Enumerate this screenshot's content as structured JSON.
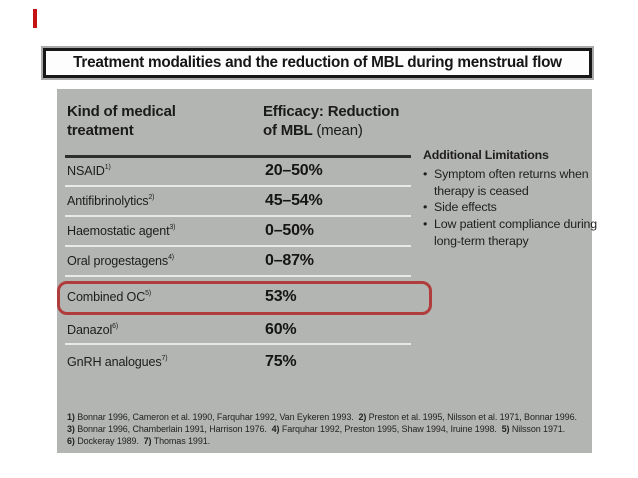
{
  "slide": {
    "title": "Treatment modalities and the reduction of MBL during menstrual flow"
  },
  "table": {
    "header": {
      "col1_line1": "Kind of medical",
      "col1_line2": "treatment",
      "col2_line1": "Efficacy: Reduction",
      "col2_line2_bold": "of MBL",
      "col2_line2_normal": "(mean)"
    },
    "rows": [
      {
        "label": "NSAID",
        "sup": "1)",
        "value": "20–50%",
        "highlighted": false
      },
      {
        "label": "Antifibrinolytics",
        "sup": "2)",
        "value": "45–54%",
        "highlighted": false
      },
      {
        "label": "Haemostatic agent",
        "sup": "3)",
        "value": "0–50%",
        "highlighted": false
      },
      {
        "label": "Oral progestagens",
        "sup": "4)",
        "value": "0–87%",
        "highlighted": false
      },
      {
        "label": "Combined OC",
        "sup": "5)",
        "value": "53%",
        "highlighted": true
      },
      {
        "label": "Danazol",
        "sup": "6)",
        "value": "60%",
        "highlighted": false
      },
      {
        "label": "GnRH analogues",
        "sup": "7)",
        "value": "75%",
        "highlighted": false
      }
    ]
  },
  "limitations": {
    "title": "Additional Limitations",
    "bullets": [
      "Symptom often returns when therapy is ceased",
      "Side effects",
      "Low patient compliance during long-term therapy"
    ]
  },
  "references": {
    "lines": [
      [
        {
          "b": "1)"
        },
        {
          "t": " Bonnar 1996, Cameron et al. 1990, Farquhar 1992, Van Eykeren 1993.  "
        },
        {
          "b": "2)"
        },
        {
          "t": " Preston et al. 1995, Nilsson et al. 1971, Bonnar 1996."
        }
      ],
      [
        {
          "b": "3)"
        },
        {
          "t": " Bonnar 1996, Chamberlain 1991, Harrison 1976.  "
        },
        {
          "b": "4)"
        },
        {
          "t": " Farquhar 1992, Preston 1995, Shaw 1994, Iruine 1998.  "
        },
        {
          "b": "5)"
        },
        {
          "t": " Nilsson 1971."
        }
      ],
      [
        {
          "b": "6)"
        },
        {
          "t": " Dockeray 1989.  "
        },
        {
          "b": "7)"
        },
        {
          "t": " Thomas 1991."
        }
      ]
    ]
  },
  "colors": {
    "panel_bg": "#b3b5b2",
    "highlight_border": "#b03c3c",
    "accent_mark": "#c31313",
    "text": "#1c1c1c",
    "separator": "#e8e8e5",
    "header_rule": "#2e2e2e",
    "title_border": "#171717"
  }
}
